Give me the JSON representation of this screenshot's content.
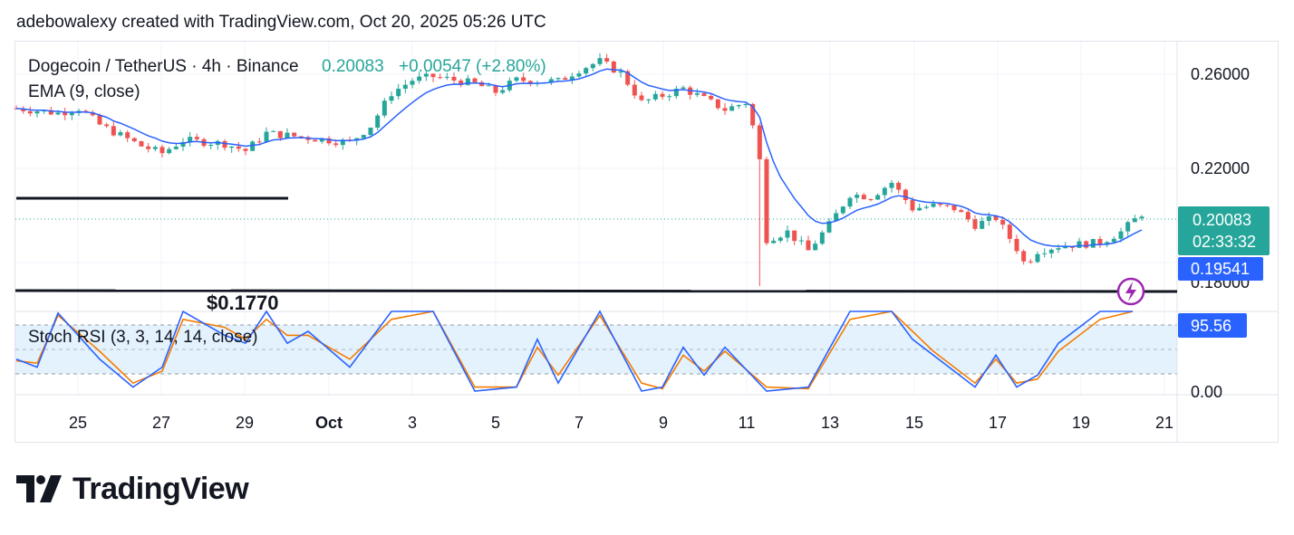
{
  "header": {
    "caption": "adebowalexy created with TradingView.com, Oct 20, 2025 05:26 UTC"
  },
  "legend": {
    "symbol": "Dogecoin / TetherUS · 4h · Binance",
    "price": "0.20083",
    "change": "+0.00547 (+2.80%)",
    "ema_label": "EMA (9, close)",
    "stoch_label": "Stoch RSI (3, 3, 14, 14, close)"
  },
  "annotations": {
    "support_label": "$0.1770"
  },
  "price_axis": {
    "ticks": [
      "0.26000",
      "0.22000",
      "0.18000"
    ],
    "last_price_label": "0.20083",
    "countdown_label": "02:33:32",
    "ema_value_label": "0.19541"
  },
  "stoch_axis": {
    "ticks": [
      "0.00"
    ],
    "value_label": "95.56"
  },
  "time_axis": {
    "ticks": [
      "25",
      "27",
      "29",
      "Oct",
      "3",
      "5",
      "7",
      "9",
      "11",
      "13",
      "15",
      "17",
      "19",
      "21"
    ]
  },
  "colors": {
    "up": "#26a69a",
    "down": "#ef5350",
    "ema": "#2962ff",
    "stoch_k": "#2962ff",
    "stoch_d": "#f57c00",
    "band": "#e3f2fd",
    "price_label_bg": "#26a69a",
    "ema_label_bg": "#2962ff",
    "flash": "#9c27b0"
  },
  "chart_data": {
    "type": "candlestick",
    "title": "Dogecoin / TetherUS · 4h · Binance",
    "x_range": [
      "Sep 23",
      "Oct 21"
    ],
    "price_range": [
      0.168,
      0.272
    ],
    "overlays": [
      {
        "name": "EMA (9, close)",
        "last_value": 0.19541
      },
      {
        "name": "$0.1770",
        "type": "horizontal_line",
        "value": 0.177
      },
      {
        "name": "",
        "type": "horizontal_segment",
        "value": 0.2105,
        "x_range": [
          "Sep 23",
          "Sep 30"
        ]
      }
    ],
    "last_price": 0.20083,
    "change": 0.00547,
    "change_pct": 2.8,
    "price_points": [
      {
        "date": "Sep 23",
        "close": 0.2455
      },
      {
        "date": "Sep 24",
        "close": 0.2435
      },
      {
        "date": "Sep 24.5",
        "close": 0.2455
      },
      {
        "date": "Sep 25",
        "close": 0.2385
      },
      {
        "date": "Sep 26",
        "close": 0.2295
      },
      {
        "date": "Sep 26.5",
        "close": 0.2265
      },
      {
        "date": "Sep 27",
        "close": 0.232
      },
      {
        "date": "Sep 28",
        "close": 0.2305
      },
      {
        "date": "Sep 28.5",
        "close": 0.2275
      },
      {
        "date": "Sep 29",
        "close": 0.235
      },
      {
        "date": "Sep 30",
        "close": 0.233
      },
      {
        "date": "Oct 1",
        "close": 0.231
      },
      {
        "date": "Oct 1.5",
        "close": 0.238
      },
      {
        "date": "Oct 2",
        "close": 0.252
      },
      {
        "date": "Oct 2.5",
        "close": 0.2575
      },
      {
        "date": "Oct 3",
        "close": 0.259
      },
      {
        "date": "Oct 4",
        "close": 0.256
      },
      {
        "date": "Oct 4.5",
        "close": 0.2525
      },
      {
        "date": "Oct 5",
        "close": 0.2575
      },
      {
        "date": "Oct 6",
        "close": 0.257
      },
      {
        "date": "Oct 6.5",
        "close": 0.262
      },
      {
        "date": "Oct 7",
        "close": 0.2655
      },
      {
        "date": "Oct 7.5",
        "close": 0.2605
      },
      {
        "date": "Oct 8",
        "close": 0.248
      },
      {
        "date": "Oct 9",
        "close": 0.254
      },
      {
        "date": "Oct 9.5",
        "close": 0.2495
      },
      {
        "date": "Oct 10",
        "close": 0.245
      },
      {
        "date": "Oct 10.5",
        "close": 0.248
      },
      {
        "date": "Oct 10.8",
        "close": 0.23
      },
      {
        "date": "Oct 11",
        "close": 0.19
      },
      {
        "date": "Oct 11.5",
        "close": 0.193
      },
      {
        "date": "Oct 12",
        "close": 0.185
      },
      {
        "date": "Oct 12.5",
        "close": 0.196
      },
      {
        "date": "Oct 13",
        "close": 0.209
      },
      {
        "date": "Oct 13.5",
        "close": 0.208
      },
      {
        "date": "Oct 14",
        "close": 0.214
      },
      {
        "date": "Oct 14.5",
        "close": 0.203
      },
      {
        "date": "Oct 15",
        "close": 0.204
      },
      {
        "date": "Oct 15.5",
        "close": 0.203
      },
      {
        "date": "Oct 16",
        "close": 0.196
      },
      {
        "date": "Oct 16.5",
        "close": 0.199
      },
      {
        "date": "Oct 17",
        "close": 0.186
      },
      {
        "date": "Oct 17.2",
        "close": 0.179
      },
      {
        "date": "Oct 17.5",
        "close": 0.185
      },
      {
        "date": "Oct 18",
        "close": 0.187
      },
      {
        "date": "Oct 19",
        "close": 0.1885
      },
      {
        "date": "Oct 19.5",
        "close": 0.193
      },
      {
        "date": "Oct 20",
        "close": 0.2008
      }
    ],
    "stoch_rsi": {
      "name": "Stoch RSI (3, 3, 14, 14, close)",
      "last_value": 95.56,
      "bands": [
        20,
        80
      ],
      "k": [
        {
          "date": "Sep 23",
          "value": 40
        },
        {
          "date": "Sep 23.5",
          "value": 30
        },
        {
          "date": "Sep 24",
          "value": 98
        },
        {
          "date": "Sep 25",
          "value": 40
        },
        {
          "date": "Sep 25.8",
          "value": 5
        },
        {
          "date": "Sep 26.5",
          "value": 30
        },
        {
          "date": "Sep 27",
          "value": 100
        },
        {
          "date": "Sep 28",
          "value": 70
        },
        {
          "date": "Sep 28.5",
          "value": 60
        },
        {
          "date": "Sep 29",
          "value": 100
        },
        {
          "date": "Sep 29.5",
          "value": 60
        },
        {
          "date": "Sep 30",
          "value": 75
        },
        {
          "date": "Oct 1",
          "value": 30
        },
        {
          "date": "Oct 2",
          "value": 100
        },
        {
          "date": "Oct 3",
          "value": 100
        },
        {
          "date": "Oct 4",
          "value": 0
        },
        {
          "date": "Oct 5",
          "value": 5
        },
        {
          "date": "Oct 5.5",
          "value": 65
        },
        {
          "date": "Oct 6",
          "value": 10
        },
        {
          "date": "Oct 7",
          "value": 100
        },
        {
          "date": "Oct 8",
          "value": 0
        },
        {
          "date": "Oct 8.5",
          "value": 5
        },
        {
          "date": "Oct 9",
          "value": 55
        },
        {
          "date": "Oct 9.5",
          "value": 20
        },
        {
          "date": "Oct 10",
          "value": 55
        },
        {
          "date": "Oct 11",
          "value": 0
        },
        {
          "date": "Oct 12",
          "value": 5
        },
        {
          "date": "Oct 13",
          "value": 100
        },
        {
          "date": "Oct 14",
          "value": 100
        },
        {
          "date": "Oct 14.5",
          "value": 65
        },
        {
          "date": "Oct 15",
          "value": 45
        },
        {
          "date": "Oct 16",
          "value": 5
        },
        {
          "date": "Oct 16.5",
          "value": 45
        },
        {
          "date": "Oct 17",
          "value": 5
        },
        {
          "date": "Oct 17.5",
          "value": 20
        },
        {
          "date": "Oct 18",
          "value": 60
        },
        {
          "date": "Oct 19",
          "value": 100
        },
        {
          "date": "Oct 20",
          "value": 100
        }
      ],
      "d": [
        {
          "date": "Sep 23",
          "value": 38
        },
        {
          "date": "Sep 23.5",
          "value": 35
        },
        {
          "date": "Sep 24",
          "value": 95
        },
        {
          "date": "Sep 25",
          "value": 50
        },
        {
          "date": "Sep 25.8",
          "value": 10
        },
        {
          "date": "Sep 26.5",
          "value": 25
        },
        {
          "date": "Sep 27",
          "value": 90
        },
        {
          "date": "Sep 28",
          "value": 80
        },
        {
          "date": "Sep 28.5",
          "value": 65
        },
        {
          "date": "Sep 29",
          "value": 90
        },
        {
          "date": "Sep 29.5",
          "value": 70
        },
        {
          "date": "Sep 30",
          "value": 70
        },
        {
          "date": "Oct 1",
          "value": 40
        },
        {
          "date": "Oct 2",
          "value": 90
        },
        {
          "date": "Oct 3",
          "value": 100
        },
        {
          "date": "Oct 4",
          "value": 5
        },
        {
          "date": "Oct 5",
          "value": 5
        },
        {
          "date": "Oct 5.5",
          "value": 55
        },
        {
          "date": "Oct 6",
          "value": 20
        },
        {
          "date": "Oct 7",
          "value": 95
        },
        {
          "date": "Oct 8",
          "value": 10
        },
        {
          "date": "Oct 8.5",
          "value": 3
        },
        {
          "date": "Oct 9",
          "value": 45
        },
        {
          "date": "Oct 9.5",
          "value": 25
        },
        {
          "date": "Oct 10",
          "value": 50
        },
        {
          "date": "Oct 11",
          "value": 5
        },
        {
          "date": "Oct 12",
          "value": 3
        },
        {
          "date": "Oct 13",
          "value": 90
        },
        {
          "date": "Oct 14",
          "value": 100
        },
        {
          "date": "Oct 14.5",
          "value": 75
        },
        {
          "date": "Oct 15",
          "value": 50
        },
        {
          "date": "Oct 16",
          "value": 10
        },
        {
          "date": "Oct 16.5",
          "value": 40
        },
        {
          "date": "Oct 17",
          "value": 10
        },
        {
          "date": "Oct 17.5",
          "value": 15
        },
        {
          "date": "Oct 18",
          "value": 50
        },
        {
          "date": "Oct 19",
          "value": 90
        },
        {
          "date": "Oct 20",
          "value": 100
        }
      ]
    }
  }
}
